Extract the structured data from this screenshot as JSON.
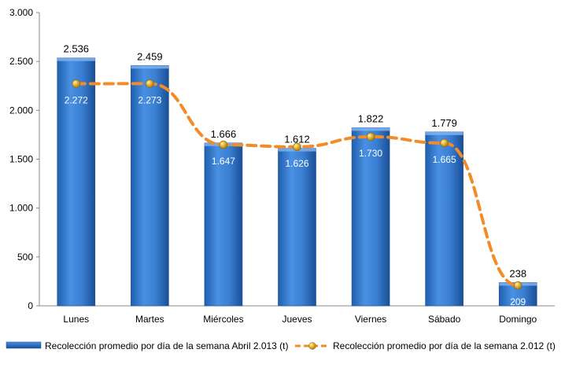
{
  "chart_data": {
    "type": "bar",
    "categories": [
      "Lunes",
      "Martes",
      "Miércoles",
      "Jueves",
      "Viernes",
      "Sábado",
      "Domingo"
    ],
    "series": [
      {
        "name": "Recolección promedio por día de la semana Abril 2.013 (t)",
        "kind": "bar",
        "values": [
          2536,
          2459,
          1666,
          1612,
          1822,
          1779,
          238
        ],
        "labels": [
          "2.536",
          "2.459",
          "1.666",
          "1.612",
          "1.822",
          "1.779",
          "238"
        ],
        "color": "#2e75c8"
      },
      {
        "name": "Recolección promedio por día de la semana 2.012 (t)",
        "kind": "line",
        "values": [
          2272,
          2273,
          1647,
          1626,
          1730,
          1665,
          209
        ],
        "labels": [
          "2.272",
          "2.273",
          "1.647",
          "1.626",
          "1.730",
          "1.665",
          "209"
        ],
        "color": "#f28c28",
        "marker_color": "#d9a521"
      }
    ],
    "ylim": [
      0,
      3000
    ],
    "yticks": [
      0,
      500,
      1000,
      1500,
      2000,
      2500,
      3000
    ],
    "ytick_labels": [
      "0",
      "500",
      "1.000",
      "1.500",
      "2.000",
      "2.500",
      "3.000"
    ],
    "grid": false,
    "legend_position": "bottom"
  }
}
